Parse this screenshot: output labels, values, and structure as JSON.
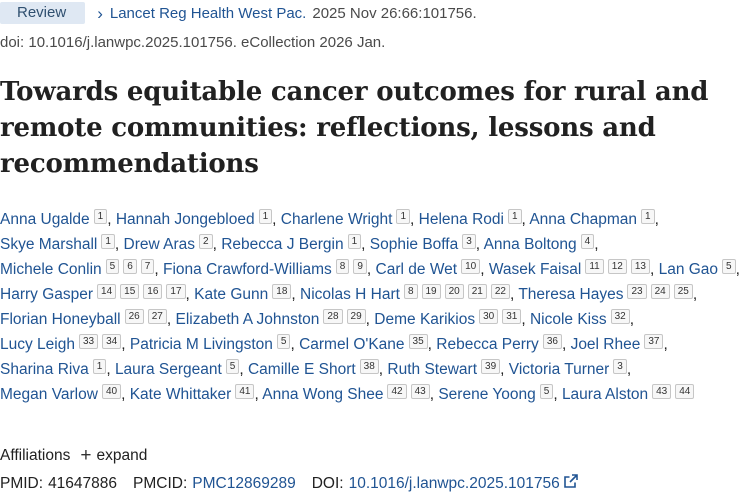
{
  "header": {
    "badge": "Review",
    "journal": "Lancet Reg Health West Pac.",
    "citation": "2025 Nov 26:66:101756.",
    "doi_line": "doi: 10.1016/j.lanwpc.2025.101756. eCollection 2026 Jan."
  },
  "title": "Towards equitable cancer outcomes for rural and remote communities: reflections, lessons and recommendations",
  "authors": [
    {
      "name": "Anna Ugalde",
      "affs": [
        "1"
      ]
    },
    {
      "name": "Hannah Jongebloed",
      "affs": [
        "1"
      ]
    },
    {
      "name": "Charlene Wright",
      "affs": [
        "1"
      ]
    },
    {
      "name": "Helena Rodi",
      "affs": [
        "1"
      ]
    },
    {
      "name": "Anna Chapman",
      "affs": [
        "1"
      ]
    },
    {
      "name": "Skye Marshall",
      "affs": [
        "1"
      ]
    },
    {
      "name": "Drew Aras",
      "affs": [
        "2"
      ]
    },
    {
      "name": "Rebecca J Bergin",
      "affs": [
        "1"
      ]
    },
    {
      "name": "Sophie Boffa",
      "affs": [
        "3"
      ]
    },
    {
      "name": "Anna Boltong",
      "affs": [
        "4"
      ]
    },
    {
      "name": "Michele Conlin",
      "affs": [
        "5",
        "6",
        "7"
      ]
    },
    {
      "name": "Fiona Crawford-Williams",
      "affs": [
        "8",
        "9"
      ]
    },
    {
      "name": "Carl de Wet",
      "affs": [
        "10"
      ]
    },
    {
      "name": "Wasek Faisal",
      "affs": [
        "11",
        "12",
        "13"
      ]
    },
    {
      "name": "Lan Gao",
      "affs": [
        "5"
      ]
    },
    {
      "name": "Harry Gasper",
      "affs": [
        "14",
        "15",
        "16",
        "17"
      ]
    },
    {
      "name": "Kate Gunn",
      "affs": [
        "18"
      ]
    },
    {
      "name": "Nicolas H Hart",
      "affs": [
        "8",
        "19",
        "20",
        "21",
        "22"
      ]
    },
    {
      "name": "Theresa Hayes",
      "affs": [
        "23",
        "24",
        "25"
      ]
    },
    {
      "name": "Florian Honeyball",
      "affs": [
        "26",
        "27"
      ]
    },
    {
      "name": "Elizabeth A Johnston",
      "affs": [
        "28",
        "29"
      ]
    },
    {
      "name": "Deme Karikios",
      "affs": [
        "30",
        "31"
      ]
    },
    {
      "name": "Nicole Kiss",
      "affs": [
        "32"
      ]
    },
    {
      "name": "Lucy Leigh",
      "affs": [
        "33",
        "34"
      ]
    },
    {
      "name": "Patricia M Livingston",
      "affs": [
        "5"
      ]
    },
    {
      "name": "Carmel O'Kane",
      "affs": [
        "35"
      ]
    },
    {
      "name": "Rebecca Perry",
      "affs": [
        "36"
      ]
    },
    {
      "name": "Joel Rhee",
      "affs": [
        "37"
      ]
    },
    {
      "name": "Sharina Riva",
      "affs": [
        "1"
      ]
    },
    {
      "name": "Laura Sergeant",
      "affs": [
        "5"
      ]
    },
    {
      "name": "Camille E Short",
      "affs": [
        "38"
      ]
    },
    {
      "name": "Ruth Stewart",
      "affs": [
        "39"
      ]
    },
    {
      "name": "Victoria Turner",
      "affs": [
        "3"
      ]
    },
    {
      "name": "Megan Varlow",
      "affs": [
        "40"
      ]
    },
    {
      "name": "Kate Whittaker",
      "affs": [
        "41"
      ]
    },
    {
      "name": "Anna Wong Shee",
      "affs": [
        "42",
        "43"
      ]
    },
    {
      "name": "Serene Yoong",
      "affs": [
        "5"
      ]
    },
    {
      "name": "Laura Alston",
      "affs": [
        "43",
        "44"
      ]
    }
  ],
  "affiliations": {
    "label": "Affiliations",
    "plus": "+",
    "toggle": "expand"
  },
  "ids": {
    "pmid_label": "PMID:",
    "pmid": "41647886",
    "pmcid_label": "PMCID:",
    "pmcid": "PMC12869289",
    "doi_label": "DOI:",
    "doi": "10.1016/j.lanwpc.2025.101756"
  },
  "icons": {
    "chevron": "chevron-right-icon",
    "external": "external-link-icon"
  },
  "colors": {
    "link": "#205493",
    "badge_bg": "#dfe8f3",
    "text": "#212121"
  }
}
